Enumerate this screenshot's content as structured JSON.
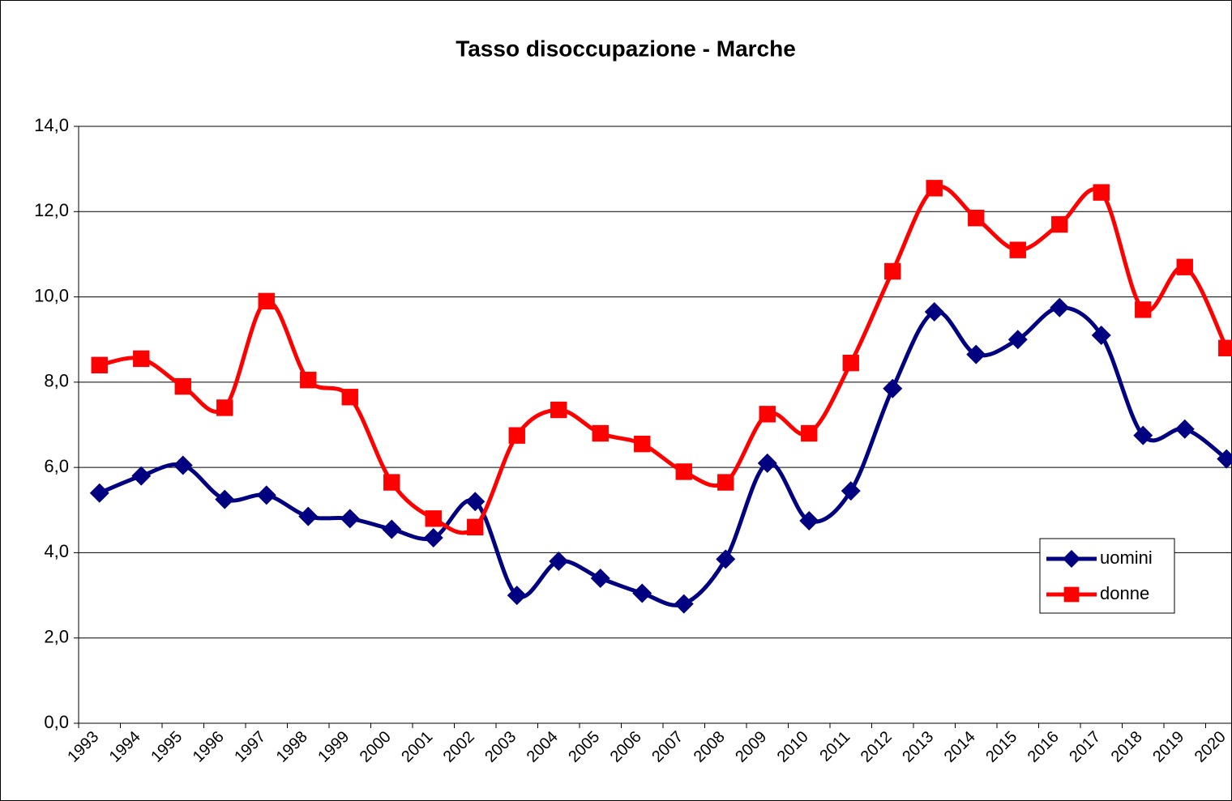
{
  "chart_data": {
    "type": "line",
    "title": "Tasso disoccupazione - Marche",
    "categories": [
      "1993",
      "1994",
      "1995",
      "1996",
      "1997",
      "1998",
      "1999",
      "2000",
      "2001",
      "2002",
      "2003",
      "2004",
      "2005",
      "2006",
      "2007",
      "2008",
      "2009",
      "2010",
      "2011",
      "2012",
      "2013",
      "2014",
      "2015",
      "2016",
      "2017",
      "2018",
      "2019",
      "2020"
    ],
    "series": [
      {
        "name": "uomini",
        "color": "#000080",
        "marker": "diamond",
        "values": [
          5.4,
          5.8,
          6.05,
          5.25,
          5.35,
          4.85,
          4.8,
          4.55,
          4.35,
          5.2,
          3.0,
          3.8,
          3.4,
          3.05,
          2.8,
          3.85,
          6.1,
          4.75,
          5.45,
          7.85,
          9.65,
          8.65,
          9.0,
          9.75,
          9.1,
          6.75,
          6.9,
          6.2
        ]
      },
      {
        "name": "donne",
        "color": "#ff0000",
        "marker": "square",
        "values": [
          8.4,
          8.55,
          7.9,
          7.4,
          9.9,
          8.05,
          7.65,
          5.65,
          4.8,
          4.6,
          6.75,
          7.35,
          6.8,
          6.55,
          5.9,
          5.65,
          7.25,
          6.8,
          8.45,
          10.6,
          12.55,
          11.85,
          11.1,
          11.7,
          12.45,
          9.7,
          10.7,
          8.8
        ]
      }
    ],
    "ylim": [
      0,
      14
    ],
    "yticks": [
      {
        "value": 0,
        "label": "0,0"
      },
      {
        "value": 2,
        "label": "2,0"
      },
      {
        "value": 4,
        "label": "4,0"
      },
      {
        "value": 6,
        "label": "6,0"
      },
      {
        "value": 8,
        "label": "8,0"
      },
      {
        "value": 10,
        "label": "10,0"
      },
      {
        "value": 12,
        "label": "12,0"
      },
      {
        "value": 14,
        "label": "14,0"
      }
    ],
    "grid": true,
    "smooth": true,
    "legend": "right"
  }
}
